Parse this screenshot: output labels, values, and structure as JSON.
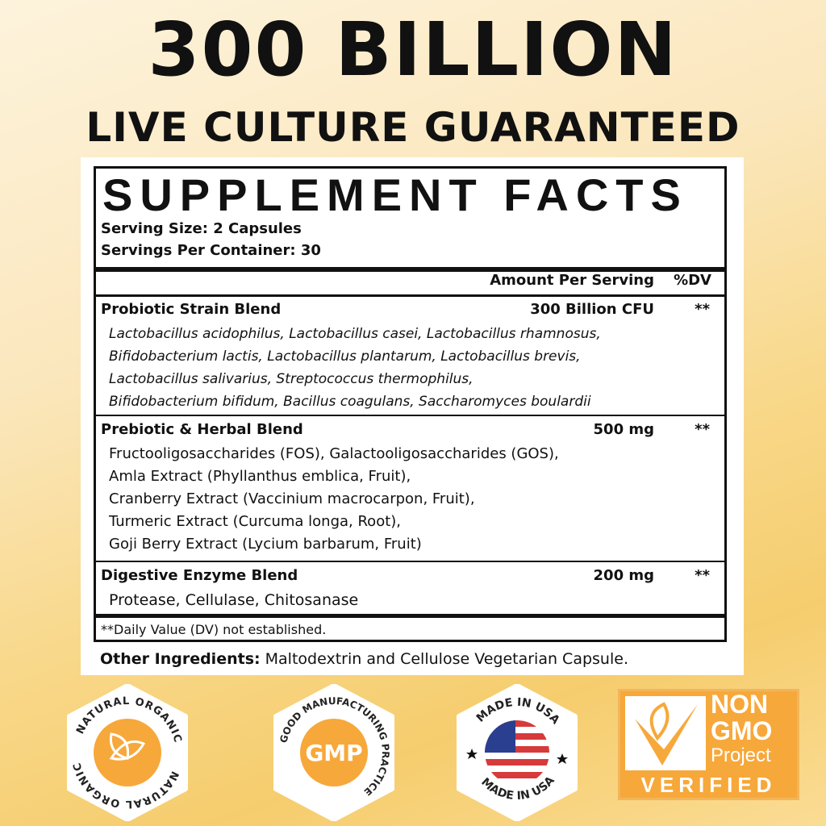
{
  "headline": {
    "line1": "300 BILLION",
    "line2": "LIVE CULTURE GUARANTEED"
  },
  "facts": {
    "title": "SUPPLEMENT FACTS",
    "serving_size": "Serving Size: 2 Capsules",
    "servings_per_container": "Servings Per Container: 30",
    "col_amount": "Amount Per Serving",
    "col_dv": "%DV",
    "rows": [
      {
        "name": "Probiotic Strain Blend",
        "amount": "300 Billion CFU",
        "dv": "**",
        "lines": [
          "Lactobacillus acidophilus, Lactobacillus casei, Lactobacillus rhamnosus,",
          "Bifidobacterium lactis, Lactobacillus plantarum, Lactobacillus brevis,",
          "Lactobacillus salivarius, Streptococcus thermophilus,",
          "Bifidobacterium bifidum, Bacillus coagulans, Saccharomyces boulardii"
        ]
      },
      {
        "name": "Prebiotic & Herbal Blend",
        "amount": "500 mg",
        "dv": "**",
        "lines": [
          "Fructooligosaccharides (FOS), Galactooligosaccharides (GOS),",
          "Amla Extract (Phyllanthus emblica, Fruit),",
          "Cranberry Extract  (Vaccinium macrocarpon, Fruit),",
          "Turmeric Extract (Curcuma longa, Root),",
          "Goji Berry Extract (Lycium barbarum, Fruit)"
        ]
      },
      {
        "name": "Digestive Enzyme Blend",
        "amount": "200 mg",
        "dv": "**",
        "lines": [
          "Protease, Cellulase, Chitosanase"
        ]
      }
    ],
    "footnote": "**Daily Value (DV) not established.",
    "other_label": "Other Ingredients:",
    "other_value": " Maltodextrin and Cellulose Vegetarian Capsule."
  },
  "badges": [
    {
      "text": "NATURAL ORGANIC",
      "icon": "leaf-icon"
    },
    {
      "text": "GOOD MANUFACTURING PRACTICE",
      "center": "GMP"
    },
    {
      "text": "MADE IN USA",
      "icon": "us-flag-icon"
    },
    {
      "l1": "NON",
      "l2": "GMO",
      "l3": "Project",
      "l4": "VERIFIED",
      "icon": "butterfly-check-icon"
    }
  ],
  "colors": {
    "accent": "#f7a83a",
    "text": "#111111"
  }
}
